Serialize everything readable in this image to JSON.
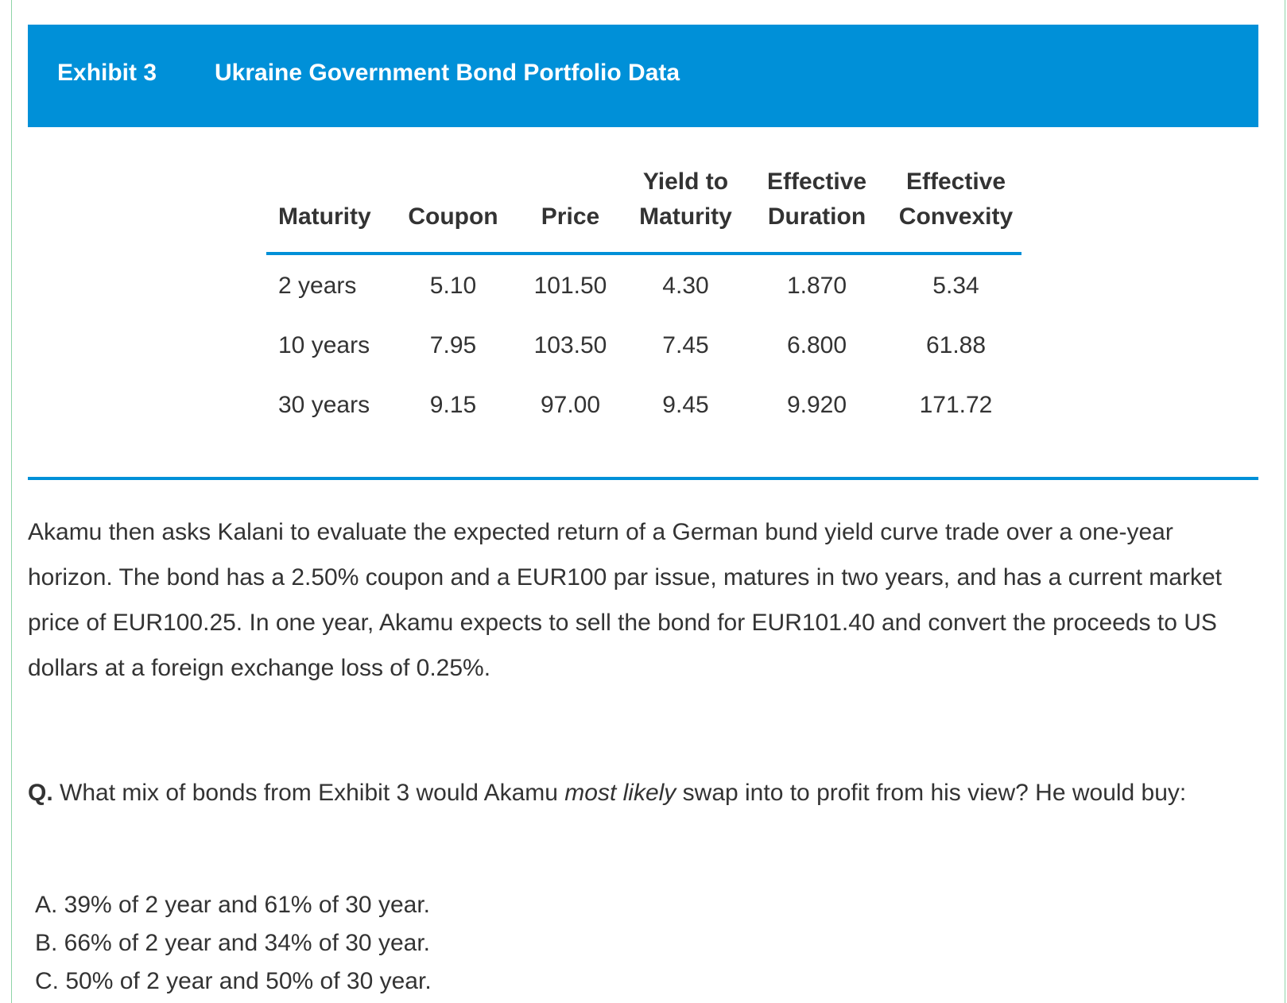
{
  "exhibit": {
    "number": "Exhibit 3",
    "title": "Ukraine Government Bond Portfolio Data"
  },
  "table": {
    "headers": [
      {
        "line1": "",
        "line2": "Maturity"
      },
      {
        "line1": "",
        "line2": "Coupon"
      },
      {
        "line1": "",
        "line2": "Price"
      },
      {
        "line1": "Yield to",
        "line2": "Maturity"
      },
      {
        "line1": "Effective",
        "line2": "Duration"
      },
      {
        "line1": "Effective",
        "line2": "Convexity"
      }
    ],
    "rows": [
      [
        "2 years",
        "5.10",
        "101.50",
        "4.30",
        "1.870",
        "5.34"
      ],
      [
        "10 years",
        "7.95",
        "103.50",
        "7.45",
        "6.800",
        "61.88"
      ],
      [
        "30 years",
        "9.15",
        "97.00",
        "9.45",
        "9.920",
        "171.72"
      ]
    ]
  },
  "paragraph": "Akamu then asks Kalani to evaluate the expected return of a German bund yield curve trade over a one-year horizon. The bond has a 2.50% coupon and a EUR100 par issue, matures in two years, and has a current market price of EUR100.25. In one year, Akamu expects to sell the bond for EUR101.40 and convert the proceeds to US dollars at a foreign exchange loss of 0.25%.",
  "question": {
    "label": "Q.",
    "text_before": " What mix of bonds from Exhibit 3 would Akamu ",
    "emphasis": "most likely",
    "text_after": " swap into to profit from his view? He would buy:"
  },
  "options": [
    "A. 39% of 2 year and 61% of 30 year.",
    "B. 66% of 2 year and 34% of 30 year.",
    "C. 50% of 2 year and 50% of 30 year."
  ]
}
